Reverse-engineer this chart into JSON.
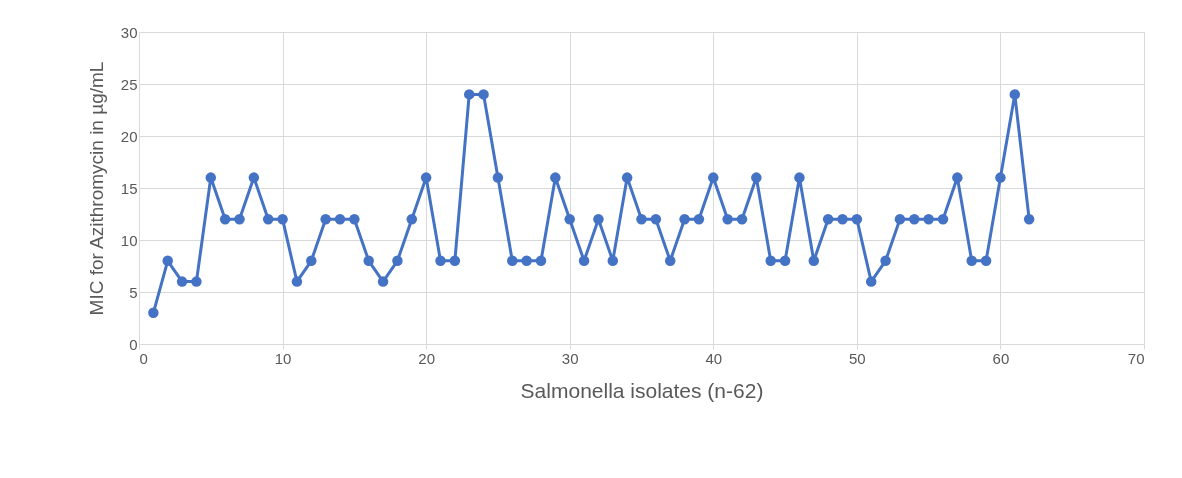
{
  "chart_data": {
    "type": "line",
    "xlabel": "Salmonella isolates (n-62)",
    "ylabel": "MIC for Azithromycin in µg/mL",
    "x": [
      1,
      2,
      3,
      4,
      5,
      6,
      7,
      8,
      9,
      10,
      11,
      12,
      13,
      14,
      15,
      16,
      17,
      18,
      19,
      20,
      21,
      22,
      23,
      24,
      25,
      26,
      27,
      28,
      29,
      30,
      31,
      32,
      33,
      34,
      35,
      36,
      37,
      38,
      39,
      40,
      41,
      42,
      43,
      44,
      45,
      46,
      47,
      48,
      49,
      50,
      51,
      52,
      53,
      54,
      55,
      56,
      57,
      58,
      59,
      60,
      61,
      62
    ],
    "series": [
      {
        "color": "#4472c4",
        "values": [
          3,
          8,
          6,
          6,
          16,
          12,
          12,
          16,
          12,
          12,
          6,
          8,
          12,
          12,
          12,
          8,
          6,
          8,
          12,
          16,
          8,
          8,
          24,
          24,
          16,
          8,
          8,
          8,
          16,
          12,
          8,
          12,
          8,
          16,
          12,
          12,
          8,
          12,
          12,
          16,
          12,
          12,
          16,
          8,
          8,
          16,
          8,
          12,
          12,
          12,
          6,
          8,
          12,
          12,
          12,
          12,
          16,
          8,
          8,
          16,
          24,
          12
        ]
      }
    ],
    "xlim": [
      0,
      70
    ],
    "xticks": [
      0,
      10,
      20,
      30,
      40,
      50,
      60,
      70
    ],
    "ylim": [
      0,
      30
    ],
    "yticks": [
      0,
      5,
      10,
      15,
      20,
      25,
      30
    ],
    "grid": true,
    "marker": "circle",
    "line_style": "solid"
  }
}
